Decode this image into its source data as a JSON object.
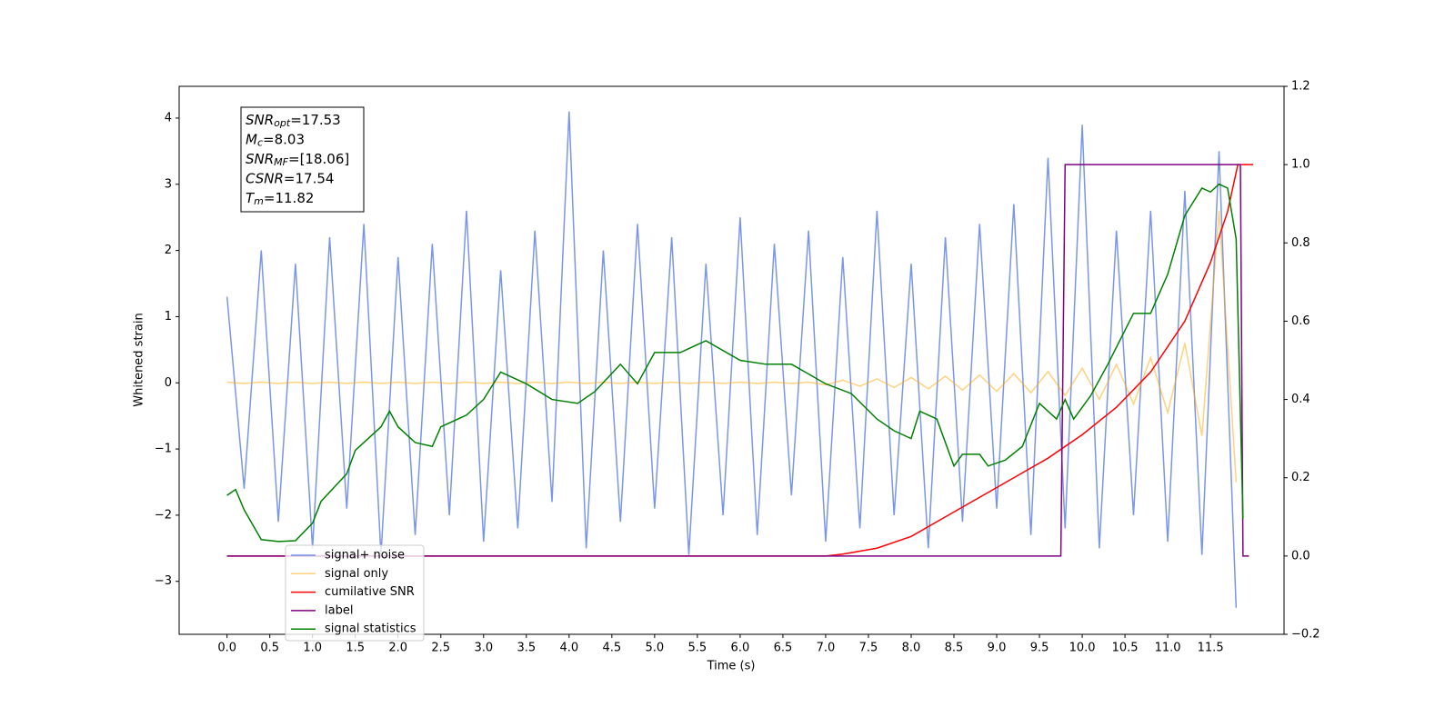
{
  "chart_data": {
    "type": "line",
    "xlabel": "Time (s)",
    "ylabel": "Whitened strain",
    "xlim": [
      -0.56,
      12.36
    ],
    "ylim": [
      -3.8,
      4.48
    ],
    "y2lim": [
      -0.2,
      1.2
    ],
    "xticks": [
      {
        "value": 0,
        "label": "0.0"
      },
      0.5,
      {
        "value": 1,
        "label": "1.0"
      },
      1.5,
      {
        "value": 2,
        "label": "2.0"
      },
      2.5,
      {
        "value": 3,
        "label": "3.0"
      },
      3.5,
      {
        "value": 4,
        "label": "4.0"
      },
      4.5,
      {
        "value": 5,
        "label": "5.0"
      },
      5.5,
      {
        "value": 6,
        "label": "6.0"
      },
      6.5,
      {
        "value": 7,
        "label": "7.0"
      },
      7.5,
      {
        "value": 8,
        "label": "8.0"
      },
      8.5,
      {
        "value": 9,
        "label": "9.0"
      },
      9.5,
      {
        "value": 10,
        "label": "10.0"
      },
      10.5,
      {
        "value": 11,
        "label": "11.0"
      },
      11.5
    ],
    "yticks": [
      {
        "value": -3,
        "label": "−3"
      },
      {
        "value": -2,
        "label": "−2"
      },
      {
        "value": -1,
        "label": "−1"
      },
      0,
      1,
      2,
      3,
      4
    ],
    "y2ticks": [
      {
        "value": -0.2,
        "label": "−0.2"
      },
      {
        "value": 0,
        "label": "0.0"
      },
      0.2,
      0.4,
      0.6,
      0.8,
      {
        "value": 1,
        "label": "1.0"
      },
      1.2
    ],
    "legend": "lower left",
    "annotation": [
      {
        "text": "SNR",
        "sub": "opt",
        "rest": "=17.53"
      },
      {
        "text": "M",
        "sub": "c",
        "rest": "=8.03"
      },
      {
        "text": "SNR",
        "sub": "MF",
        "rest": "=[18.06]"
      },
      {
        "text": "CSNR",
        "rest": "=17.54"
      },
      {
        "text": "T",
        "sub": "m",
        "rest": "=11.82"
      }
    ],
    "x": [
      0,
      0.2,
      0.4,
      0.6,
      0.8,
      1,
      1.2,
      1.4,
      1.6,
      1.8,
      2,
      2.2,
      2.4,
      2.6,
      2.8,
      3,
      3.2,
      3.4,
      3.6,
      3.8,
      4,
      4.2,
      4.4,
      4.6,
      4.8,
      5,
      5.2,
      5.4,
      5.6,
      5.8,
      6,
      6.2,
      6.4,
      6.6,
      6.8,
      7,
      7.2,
      7.4,
      7.6,
      7.8,
      8,
      8.2,
      8.4,
      8.6,
      8.8,
      9,
      9.2,
      9.4,
      9.6,
      9.8,
      10,
      10.2,
      10.4,
      10.6,
      10.8,
      11,
      11.2,
      11.4,
      11.6,
      11.8
    ],
    "series": [
      {
        "name": "signal+ noise",
        "color": "#4169e1",
        "alpha": 0.7,
        "values": [
          1.3,
          -1.6,
          2.0,
          -2.1,
          1.8,
          -2.5,
          2.2,
          -1.9,
          2.4,
          -2.6,
          1.9,
          -2.3,
          2.1,
          -2.0,
          2.6,
          -2.4,
          1.7,
          -2.2,
          2.3,
          -1.8,
          4.1,
          -2.5,
          2.0,
          -2.1,
          2.4,
          -1.9,
          2.2,
          -2.6,
          1.8,
          -2.0,
          2.5,
          -2.3,
          2.1,
          -1.7,
          2.3,
          -2.4,
          1.9,
          -2.2,
          2.6,
          -2.0,
          1.8,
          -2.5,
          2.2,
          -2.1,
          2.4,
          -1.9,
          2.7,
          -2.3,
          3.4,
          -2.2,
          3.9,
          -2.5,
          2.3,
          -2.0,
          2.6,
          -2.4,
          2.9,
          -2.6,
          3.5,
          -3.4
        ]
      },
      {
        "name": "signal only",
        "color": "#ffa500",
        "alpha": 0.5,
        "values": [
          0.01,
          -0.01,
          0.01,
          -0.01,
          0.01,
          -0.01,
          0.01,
          -0.01,
          0.01,
          -0.01,
          0.01,
          -0.01,
          0.01,
          -0.01,
          0.01,
          -0.01,
          0.01,
          -0.01,
          0.01,
          -0.01,
          0.01,
          -0.01,
          0.01,
          -0.01,
          0.01,
          -0.01,
          0.01,
          -0.01,
          0.01,
          -0.01,
          0.01,
          -0.01,
          0.01,
          -0.01,
          0.01,
          -0.03,
          0.04,
          -0.05,
          0.06,
          -0.07,
          0.08,
          -0.09,
          0.1,
          -0.11,
          0.12,
          -0.13,
          0.14,
          -0.15,
          0.17,
          -0.19,
          0.22,
          -0.25,
          0.28,
          -0.32,
          0.38,
          -0.45,
          0.6,
          -0.8,
          2.6,
          -1.5
        ]
      },
      {
        "name": "cumilative SNR",
        "color": "#ff0000",
        "axis": "y2",
        "alpha": 1,
        "x": [
          0,
          7,
          7.2,
          7.6,
          8,
          8.4,
          8.8,
          9.2,
          9.6,
          10,
          10.4,
          10.8,
          11.2,
          11.5,
          11.7,
          11.82,
          12
        ],
        "values": [
          0,
          0,
          0.005,
          0.02,
          0.05,
          0.1,
          0.15,
          0.2,
          0.25,
          0.31,
          0.38,
          0.47,
          0.6,
          0.75,
          0.88,
          1,
          1
        ]
      },
      {
        "name": "label",
        "color": "#800080",
        "axis": "y2",
        "alpha": 1,
        "x": [
          0,
          9.75,
          9.8,
          11.85,
          11.88,
          11.95
        ],
        "values": [
          0,
          0,
          1,
          1,
          0,
          0
        ]
      },
      {
        "name": "signal statistics",
        "color": "#008000",
        "axis": "y2",
        "alpha": 1,
        "x": [
          0,
          0.1,
          0.2,
          0.4,
          0.6,
          0.8,
          1,
          1.1,
          1.4,
          1.5,
          1.8,
          1.9,
          2,
          2.2,
          2.4,
          2.5,
          2.8,
          3,
          3.2,
          3.5,
          3.8,
          4.1,
          4.3,
          4.6,
          4.8,
          5,
          5.3,
          5.6,
          6,
          6.3,
          6.6,
          7,
          7.3,
          7.6,
          7.8,
          8,
          8.1,
          8.3,
          8.5,
          8.6,
          8.8,
          8.9,
          9.1,
          9.3,
          9.5,
          9.7,
          9.8,
          9.9,
          10.1,
          10.3,
          10.6,
          10.8,
          11,
          11.2,
          11.4,
          11.5,
          11.6,
          11.7,
          11.8,
          11.88
        ],
        "values": [
          0.155,
          0.17,
          0.118,
          0.042,
          0.037,
          0.039,
          0.084,
          0.14,
          0.21,
          0.27,
          0.33,
          0.37,
          0.33,
          0.29,
          0.28,
          0.33,
          0.36,
          0.4,
          0.47,
          0.44,
          0.4,
          0.39,
          0.42,
          0.49,
          0.44,
          0.52,
          0.52,
          0.55,
          0.5,
          0.49,
          0.49,
          0.44,
          0.415,
          0.35,
          0.32,
          0.3,
          0.37,
          0.35,
          0.23,
          0.26,
          0.26,
          0.23,
          0.245,
          0.28,
          0.39,
          0.35,
          0.4,
          0.35,
          0.41,
          0.49,
          0.62,
          0.62,
          0.72,
          0.87,
          0.94,
          0.93,
          0.95,
          0.94,
          0.81,
          0.095
        ]
      }
    ]
  }
}
